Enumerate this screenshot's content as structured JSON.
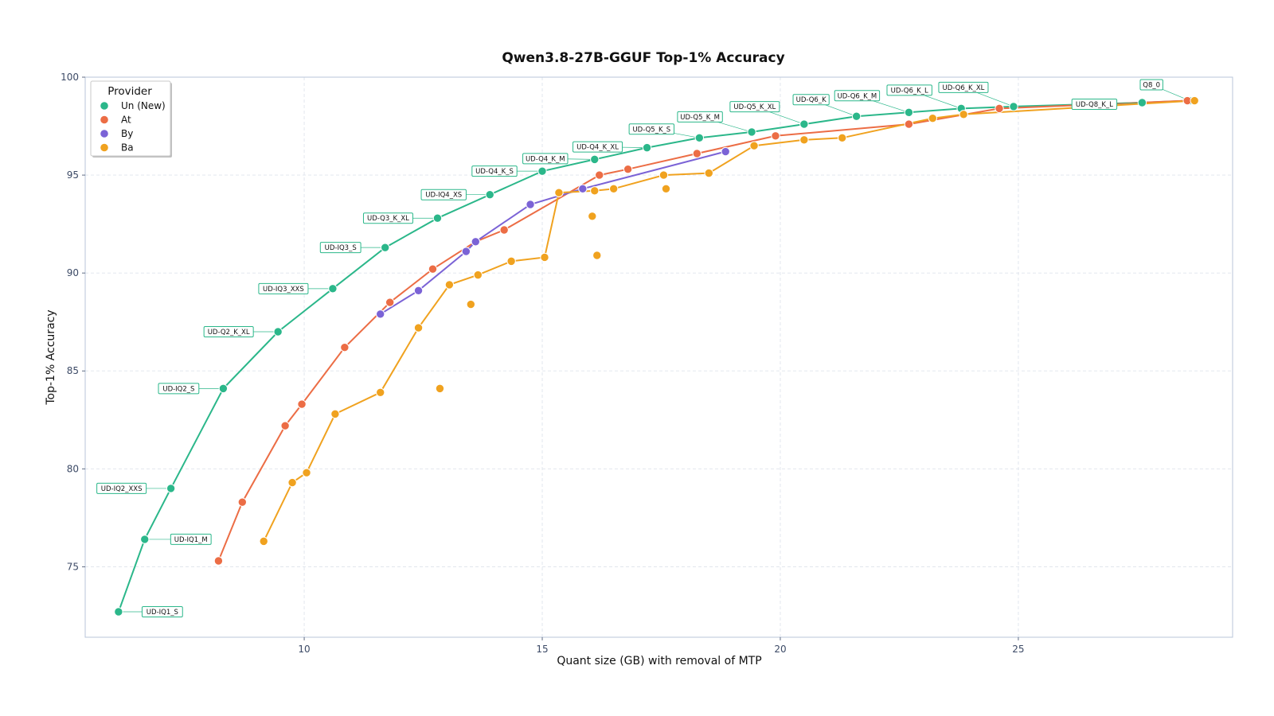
{
  "chart_data": {
    "type": "scatter",
    "title": "Qwen3.8-27B-GGUF Top-1% Accuracy",
    "xlabel": "Quant size (GB) with removal of MTP",
    "ylabel": "Top-1% Accuracy",
    "xlim": [
      5.4,
      29.5
    ],
    "ylim": [
      71.4,
      100
    ],
    "xticks": [
      10,
      15,
      20,
      25
    ],
    "yticks": [
      75,
      80,
      85,
      90,
      95,
      100
    ],
    "grid": true,
    "legend": {
      "title": "Provider",
      "placement": "top-left"
    },
    "series": [
      {
        "name": "Un (New)",
        "color": "#2bb78a",
        "points": [
          {
            "x": 6.1,
            "y": 72.7,
            "label": "UD-IQ1_S"
          },
          {
            "x": 6.65,
            "y": 76.4,
            "label": "UD-IQ1_M"
          },
          {
            "x": 7.2,
            "y": 79.0,
            "label": "UD-IQ2_XXS"
          },
          {
            "x": 8.3,
            "y": 84.1,
            "label": "UD-IQ2_S"
          },
          {
            "x": 9.45,
            "y": 87.0,
            "label": "UD-Q2_K_XL"
          },
          {
            "x": 10.6,
            "y": 89.2,
            "label": "UD-IQ3_XXS"
          },
          {
            "x": 11.7,
            "y": 91.3,
            "label": "UD-IQ3_S"
          },
          {
            "x": 12.8,
            "y": 92.8,
            "label": "UD-Q3_K_XL"
          },
          {
            "x": 13.9,
            "y": 94.0,
            "label": "UD-IQ4_XS"
          },
          {
            "x": 15.0,
            "y": 95.2,
            "label": "UD-Q4_K_S"
          },
          {
            "x": 16.1,
            "y": 95.8,
            "label": "UD-Q4_K_M"
          },
          {
            "x": 17.2,
            "y": 96.4,
            "label": "UD-Q4_K_XL"
          },
          {
            "x": 18.3,
            "y": 96.9,
            "label": "UD-Q5_K_S"
          },
          {
            "x": 19.4,
            "y": 97.2,
            "label": "UD-Q5_K_M"
          },
          {
            "x": 20.5,
            "y": 97.6,
            "label": "UD-Q5_K_XL"
          },
          {
            "x": 21.6,
            "y": 98.0,
            "label": "UD-Q6_K"
          },
          {
            "x": 22.7,
            "y": 98.2,
            "label": "UD-Q6_K_M"
          },
          {
            "x": 23.8,
            "y": 98.4,
            "label": "UD-Q6_K_L"
          },
          {
            "x": 24.9,
            "y": 98.5,
            "label": "UD-Q6_K_XL"
          },
          {
            "x": 27.6,
            "y": 98.7,
            "label": "UD-Q8_K_L"
          },
          {
            "x": 28.6,
            "y": 98.8,
            "label": "Q8_0"
          }
        ]
      },
      {
        "name": "At",
        "color": "#ec6d45",
        "points": [
          {
            "x": 8.2,
            "y": 75.3
          },
          {
            "x": 8.7,
            "y": 78.3
          },
          {
            "x": 9.6,
            "y": 82.2
          },
          {
            "x": 9.95,
            "y": 83.3
          },
          {
            "x": 10.85,
            "y": 86.2
          },
          {
            "x": 11.8,
            "y": 88.5
          },
          {
            "x": 12.7,
            "y": 90.2
          },
          {
            "x": 13.6,
            "y": 91.6
          },
          {
            "x": 14.2,
            "y": 92.2
          },
          {
            "x": 16.2,
            "y": 95.0
          },
          {
            "x": 16.8,
            "y": 95.3
          },
          {
            "x": 18.25,
            "y": 96.1
          },
          {
            "x": 19.9,
            "y": 97.0
          },
          {
            "x": 22.7,
            "y": 97.6
          },
          {
            "x": 24.6,
            "y": 98.4
          },
          {
            "x": 28.55,
            "y": 98.8
          }
        ]
      },
      {
        "name": "By",
        "color": "#7b63d6",
        "points": [
          {
            "x": 11.6,
            "y": 87.9
          },
          {
            "x": 12.4,
            "y": 89.1
          },
          {
            "x": 13.4,
            "y": 91.1
          },
          {
            "x": 13.6,
            "y": 91.6
          },
          {
            "x": 14.75,
            "y": 93.5
          },
          {
            "x": 15.85,
            "y": 94.3
          },
          {
            "x": 18.85,
            "y": 96.2
          }
        ]
      },
      {
        "name": "Ba",
        "color": "#f0a21f",
        "points": [
          {
            "x": 9.15,
            "y": 76.3
          },
          {
            "x": 9.75,
            "y": 79.3
          },
          {
            "x": 10.05,
            "y": 79.8
          },
          {
            "x": 10.65,
            "y": 82.8
          },
          {
            "x": 11.6,
            "y": 83.9
          },
          {
            "x": 12.4,
            "y": 87.2
          },
          {
            "x": 13.05,
            "y": 89.4
          },
          {
            "x": 13.65,
            "y": 89.9
          },
          {
            "x": 14.35,
            "y": 90.6
          },
          {
            "x": 15.05,
            "y": 90.8
          },
          {
            "x": 15.35,
            "y": 94.1
          },
          {
            "x": 16.1,
            "y": 94.2
          },
          {
            "x": 16.5,
            "y": 94.3
          },
          {
            "x": 17.55,
            "y": 95.0
          },
          {
            "x": 18.5,
            "y": 95.1
          },
          {
            "x": 19.45,
            "y": 96.5
          },
          {
            "x": 20.5,
            "y": 96.8
          },
          {
            "x": 21.3,
            "y": 96.9
          },
          {
            "x": 23.2,
            "y": 97.9
          },
          {
            "x": 23.85,
            "y": 98.1
          },
          {
            "x": 28.7,
            "y": 98.8
          }
        ],
        "extra_points": [
          {
            "x": 12.85,
            "y": 84.1
          },
          {
            "x": 13.5,
            "y": 88.4
          },
          {
            "x": 16.05,
            "y": 92.9
          },
          {
            "x": 16.15,
            "y": 90.9
          },
          {
            "x": 17.6,
            "y": 94.3
          }
        ]
      }
    ]
  }
}
